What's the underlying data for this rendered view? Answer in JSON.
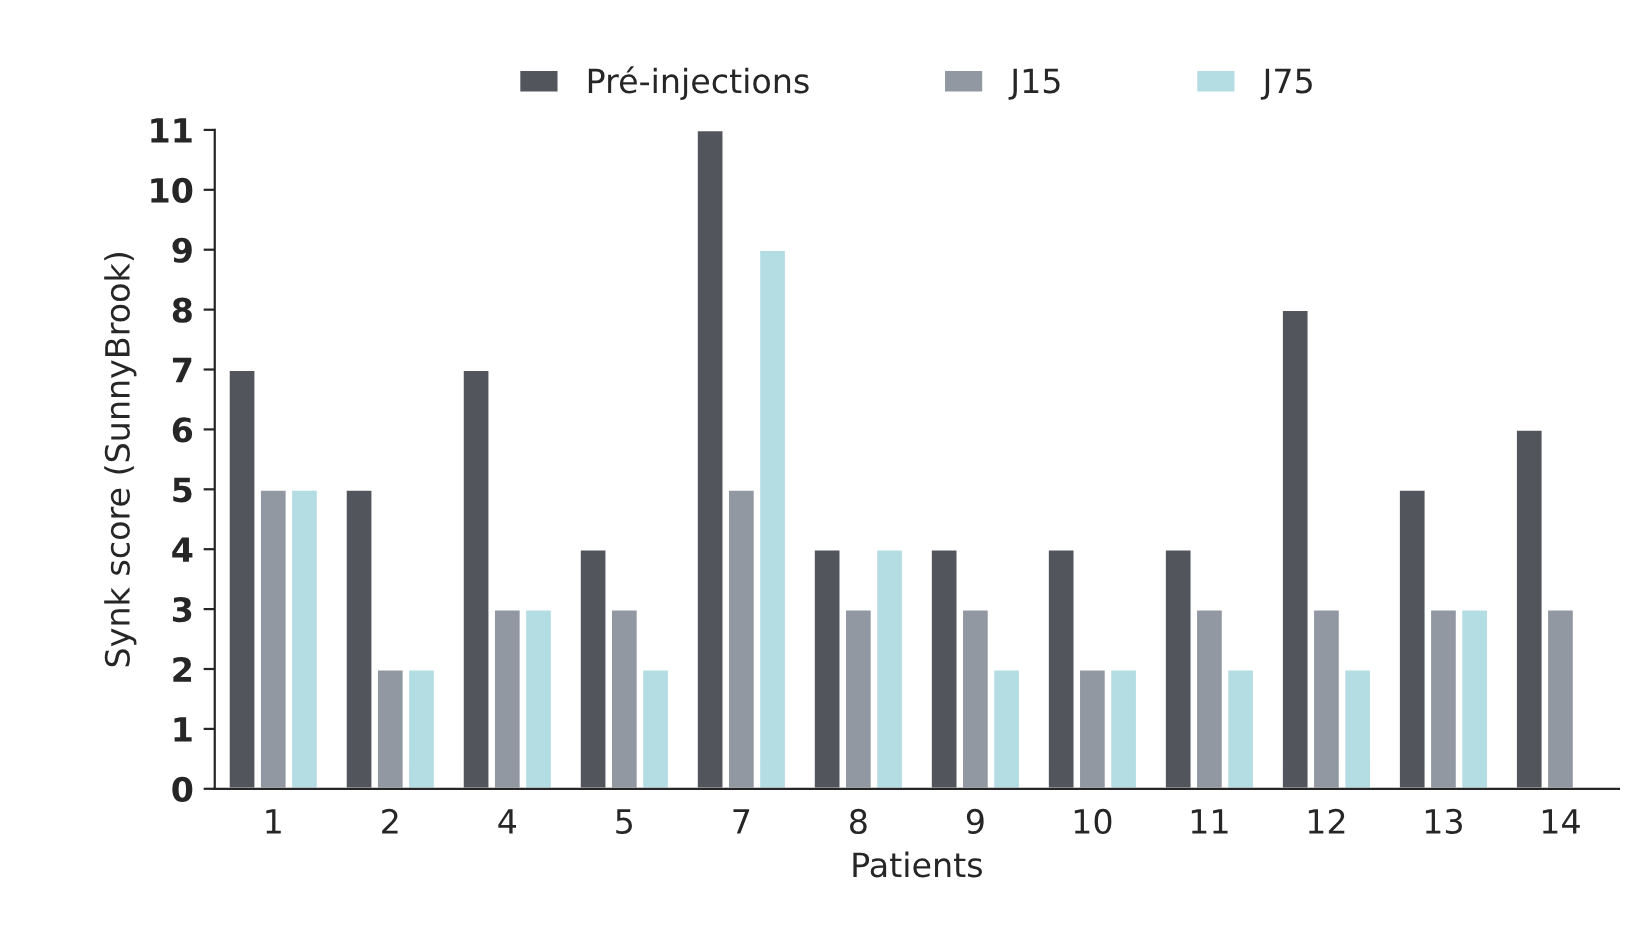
{
  "chart_data": {
    "type": "bar",
    "xlabel": "Patients",
    "ylabel": "Synk score (SunnyBrook)",
    "categories": [
      "1",
      "2",
      "4",
      "5",
      "7",
      "8",
      "9",
      "10",
      "11",
      "12",
      "13",
      "14"
    ],
    "series": [
      {
        "name": "Pré-injections",
        "color": "#52565c",
        "values": [
          7,
          5,
          7,
          4,
          11,
          4,
          4,
          4,
          4,
          8,
          5,
          6
        ]
      },
      {
        "name": "J15",
        "color": "#9198a1",
        "values": [
          5,
          2,
          3,
          3,
          5,
          3,
          3,
          2,
          3,
          3,
          3,
          3
        ]
      },
      {
        "name": "J75",
        "color": "#b3dde3",
        "values": [
          5,
          2,
          3,
          2,
          9,
          4,
          2,
          2,
          2,
          2,
          3,
          null
        ]
      }
    ],
    "ylim": [
      0,
      11
    ],
    "yticks": [
      0,
      1,
      2,
      3,
      4,
      5,
      6,
      7,
      8,
      9,
      10,
      11
    ],
    "grid": false,
    "legend": "top"
  }
}
